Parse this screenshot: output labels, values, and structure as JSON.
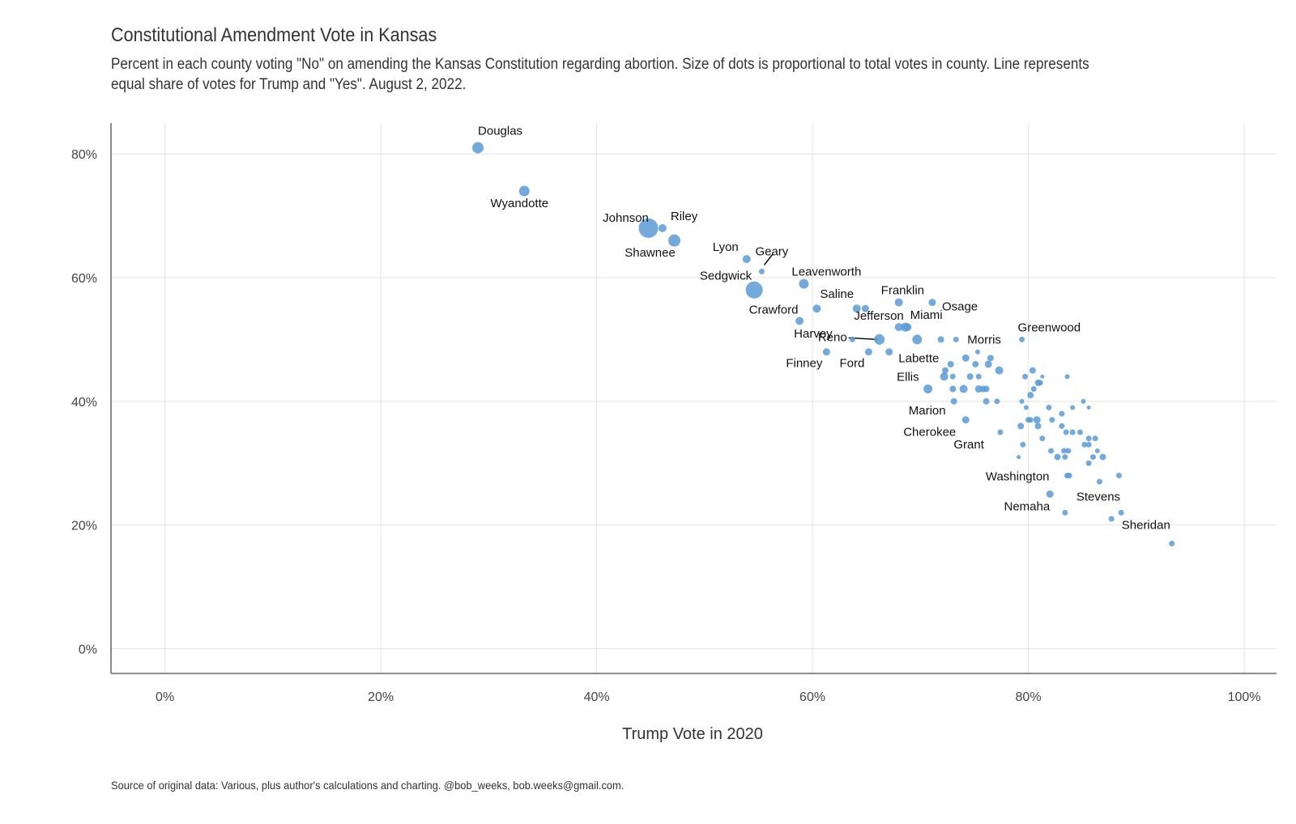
{
  "chart_data": {
    "type": "scatter",
    "title": "Constitutional Amendment Vote in Kansas",
    "subtitle": "Percent in each county voting \"No\" on amending the Kansas Constitution regarding abortion. Size of dots is proportional to total votes in county. Line represents equal share of votes for Trump and \"Yes\". August 2, 2022.",
    "caption": "Source of original data: Various, plus author's calculations and charting. @bob_weeks, bob.weeks@gmail.com.",
    "xlabel": "Trump Vote in 2020",
    "ylabel": "",
    "xlim": [
      -0.05,
      1.03
    ],
    "ylim": [
      -0.04,
      0.85
    ],
    "x_ticks": [
      0,
      0.2,
      0.4,
      0.6,
      0.8,
      1.0
    ],
    "x_tick_labels": [
      "0%",
      "20%",
      "40%",
      "60%",
      "80%",
      "100%"
    ],
    "y_ticks": [
      0,
      0.2,
      0.4,
      0.6,
      0.8
    ],
    "y_tick_labels": [
      "0%",
      "20%",
      "40%",
      "60%",
      "80%"
    ],
    "grid": true,
    "point_color": "#5b9bd5",
    "points": [
      {
        "name": "Douglas",
        "x": 0.29,
        "y": 0.81,
        "size": 7
      },
      {
        "name": "Wyandotte",
        "x": 0.333,
        "y": 0.74,
        "size": 6.5
      },
      {
        "name": "Johnson",
        "x": 0.448,
        "y": 0.68,
        "size": 12
      },
      {
        "name": "Riley",
        "x": 0.461,
        "y": 0.68,
        "size": 5
      },
      {
        "name": "Shawnee",
        "x": 0.472,
        "y": 0.66,
        "size": 7.5
      },
      {
        "name": "Lyon",
        "x": 0.539,
        "y": 0.63,
        "size": 5
      },
      {
        "name": "Geary",
        "x": 0.553,
        "y": 0.61,
        "size": 3.5
      },
      {
        "name": "Sedgwick",
        "x": 0.546,
        "y": 0.58,
        "size": 10.5
      },
      {
        "name": "Leavenworth",
        "x": 0.592,
        "y": 0.59,
        "size": 6
      },
      {
        "name": "Saline",
        "x": 0.604,
        "y": 0.55,
        "size": 5
      },
      {
        "name": "Crawford",
        "x": 0.588,
        "y": 0.53,
        "size": 5
      },
      {
        "name": "Harvey",
        "x": 0.641,
        "y": 0.55,
        "size": 5
      },
      {
        "name": "Jefferson",
        "x": 0.649,
        "y": 0.55,
        "size": 4.5
      },
      {
        "name": "Franklin",
        "x": 0.68,
        "y": 0.56,
        "size": 5
      },
      {
        "name": "Osage",
        "x": 0.711,
        "y": 0.56,
        "size": 4.5
      },
      {
        "name": "Reno",
        "x": 0.662,
        "y": 0.5,
        "size": 6.5
      },
      {
        "name": "Miami",
        "x": 0.686,
        "y": 0.52,
        "size": 5.5
      },
      {
        "name": "Finney",
        "x": 0.613,
        "y": 0.48,
        "size": 4.5
      },
      {
        "name": "Ford",
        "x": 0.652,
        "y": 0.48,
        "size": 4.5
      },
      {
        "name": "Labette",
        "x": 0.697,
        "y": 0.5,
        "size": 6
      },
      {
        "name": "Morris",
        "x": 0.733,
        "y": 0.5,
        "size": 3.5
      },
      {
        "name": "Greenwood",
        "x": 0.794,
        "y": 0.5,
        "size": 3.5
      },
      {
        "name": "Ellis",
        "x": 0.707,
        "y": 0.42,
        "size": 5.5
      },
      {
        "name": "Marion",
        "x": 0.731,
        "y": 0.4,
        "size": 4
      },
      {
        "name": "Cherokee",
        "x": 0.742,
        "y": 0.37,
        "size": 4.5
      },
      {
        "name": "Grant",
        "x": 0.774,
        "y": 0.35,
        "size": 3.5
      },
      {
        "name": "Washington",
        "x": 0.836,
        "y": 0.28,
        "size": 3.5
      },
      {
        "name": "Nemaha",
        "x": 0.82,
        "y": 0.25,
        "size": 4.5
      },
      {
        "name": "Stevens",
        "x": 0.834,
        "y": 0.22,
        "size": 3.5
      },
      {
        "name": "Sheridan",
        "x": 0.933,
        "y": 0.17,
        "size": 3.5
      },
      {
        "x": 0.68,
        "y": 0.52,
        "size": 5
      },
      {
        "x": 0.688,
        "y": 0.52,
        "size": 5
      },
      {
        "x": 0.671,
        "y": 0.48,
        "size": 4.5
      },
      {
        "x": 0.719,
        "y": 0.5,
        "size": 4
      },
      {
        "x": 0.637,
        "y": 0.5,
        "size": 3.5
      },
      {
        "x": 0.723,
        "y": 0.45,
        "size": 4
      },
      {
        "x": 0.722,
        "y": 0.44,
        "size": 5
      },
      {
        "x": 0.728,
        "y": 0.46,
        "size": 4
      },
      {
        "x": 0.73,
        "y": 0.44,
        "size": 3.5
      },
      {
        "x": 0.73,
        "y": 0.42,
        "size": 4
      },
      {
        "x": 0.74,
        "y": 0.42,
        "size": 5
      },
      {
        "x": 0.742,
        "y": 0.47,
        "size": 4.5
      },
      {
        "x": 0.746,
        "y": 0.44,
        "size": 4
      },
      {
        "x": 0.751,
        "y": 0.46,
        "size": 4
      },
      {
        "x": 0.753,
        "y": 0.48,
        "size": 3
      },
      {
        "x": 0.754,
        "y": 0.44,
        "size": 3.5
      },
      {
        "x": 0.754,
        "y": 0.42,
        "size": 4.5
      },
      {
        "x": 0.758,
        "y": 0.42,
        "size": 4
      },
      {
        "x": 0.761,
        "y": 0.42,
        "size": 4
      },
      {
        "x": 0.761,
        "y": 0.4,
        "size": 4
      },
      {
        "x": 0.763,
        "y": 0.46,
        "size": 4.5
      },
      {
        "x": 0.765,
        "y": 0.47,
        "size": 4
      },
      {
        "x": 0.771,
        "y": 0.4,
        "size": 3.5
      },
      {
        "x": 0.773,
        "y": 0.45,
        "size": 5
      },
      {
        "x": 0.797,
        "y": 0.44,
        "size": 3.5
      },
      {
        "x": 0.804,
        "y": 0.45,
        "size": 4
      },
      {
        "x": 0.809,
        "y": 0.43,
        "size": 4
      },
      {
        "x": 0.811,
        "y": 0.43,
        "size": 3.5
      },
      {
        "x": 0.813,
        "y": 0.44,
        "size": 2.5
      },
      {
        "x": 0.805,
        "y": 0.42,
        "size": 3.5
      },
      {
        "x": 0.802,
        "y": 0.41,
        "size": 4
      },
      {
        "x": 0.794,
        "y": 0.4,
        "size": 3
      },
      {
        "x": 0.798,
        "y": 0.39,
        "size": 3
      },
      {
        "x": 0.8,
        "y": 0.37,
        "size": 3.5
      },
      {
        "x": 0.802,
        "y": 0.37,
        "size": 3.5
      },
      {
        "x": 0.808,
        "y": 0.37,
        "size": 4.5
      },
      {
        "x": 0.809,
        "y": 0.36,
        "size": 4
      },
      {
        "x": 0.793,
        "y": 0.36,
        "size": 4
      },
      {
        "x": 0.795,
        "y": 0.33,
        "size": 3.5
      },
      {
        "x": 0.791,
        "y": 0.31,
        "size": 2.5
      },
      {
        "x": 0.813,
        "y": 0.34,
        "size": 3.5
      },
      {
        "x": 0.819,
        "y": 0.39,
        "size": 3.5
      },
      {
        "x": 0.822,
        "y": 0.37,
        "size": 3.5
      },
      {
        "x": 0.821,
        "y": 0.32,
        "size": 3.5
      },
      {
        "x": 0.827,
        "y": 0.31,
        "size": 4
      },
      {
        "x": 0.831,
        "y": 0.38,
        "size": 3.5
      },
      {
        "x": 0.831,
        "y": 0.36,
        "size": 3.5
      },
      {
        "x": 0.835,
        "y": 0.35,
        "size": 3.5
      },
      {
        "x": 0.833,
        "y": 0.32,
        "size": 3.5
      },
      {
        "x": 0.837,
        "y": 0.32,
        "size": 3.5
      },
      {
        "x": 0.834,
        "y": 0.31,
        "size": 3.5
      },
      {
        "x": 0.838,
        "y": 0.28,
        "size": 3.5
      },
      {
        "x": 0.836,
        "y": 0.44,
        "size": 3
      },
      {
        "x": 0.841,
        "y": 0.39,
        "size": 3
      },
      {
        "x": 0.841,
        "y": 0.35,
        "size": 3.5
      },
      {
        "x": 0.848,
        "y": 0.35,
        "size": 3.5
      },
      {
        "x": 0.851,
        "y": 0.4,
        "size": 3
      },
      {
        "x": 0.856,
        "y": 0.39,
        "size": 2.5
      },
      {
        "x": 0.852,
        "y": 0.33,
        "size": 3.5
      },
      {
        "x": 0.856,
        "y": 0.34,
        "size": 3.5
      },
      {
        "x": 0.856,
        "y": 0.33,
        "size": 3.5
      },
      {
        "x": 0.856,
        "y": 0.3,
        "size": 3.5
      },
      {
        "x": 0.86,
        "y": 0.31,
        "size": 3.5
      },
      {
        "x": 0.862,
        "y": 0.34,
        "size": 3.5
      },
      {
        "x": 0.864,
        "y": 0.32,
        "size": 3
      },
      {
        "x": 0.869,
        "y": 0.31,
        "size": 4
      },
      {
        "x": 0.866,
        "y": 0.27,
        "size": 3.5
      },
      {
        "x": 0.884,
        "y": 0.28,
        "size": 3.5
      },
      {
        "x": 0.877,
        "y": 0.21,
        "size": 3.5
      },
      {
        "x": 0.886,
        "y": 0.22,
        "size": 3.5
      }
    ]
  }
}
